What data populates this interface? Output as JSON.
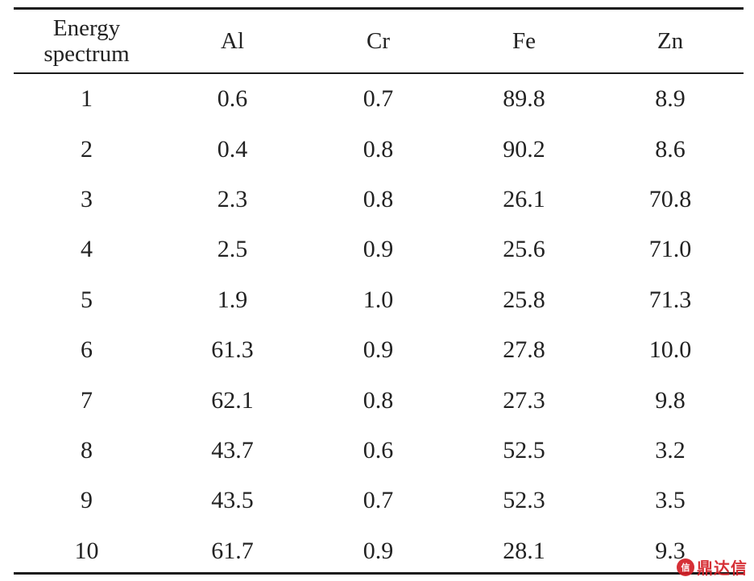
{
  "table": {
    "headers": [
      "Energy\nspectrum",
      "Al",
      "Cr",
      "Fe",
      "Zn"
    ],
    "rows": [
      [
        "1",
        "0.6",
        "0.7",
        "89.8",
        "8.9"
      ],
      [
        "2",
        "0.4",
        "0.8",
        "90.2",
        "8.6"
      ],
      [
        "3",
        "2.3",
        "0.8",
        "26.1",
        "70.8"
      ],
      [
        "4",
        "2.5",
        "0.9",
        "25.6",
        "71.0"
      ],
      [
        "5",
        "1.9",
        "1.0",
        "25.8",
        "71.3"
      ],
      [
        "6",
        "61.3",
        "0.9",
        "27.8",
        "10.0"
      ],
      [
        "7",
        "62.1",
        "0.8",
        "27.3",
        "9.8"
      ],
      [
        "8",
        "43.7",
        "0.6",
        "52.5",
        "3.2"
      ],
      [
        "9",
        "43.5",
        "0.7",
        "52.3",
        "3.5"
      ],
      [
        "10",
        "61.7",
        "0.9",
        "28.1",
        "9.3"
      ]
    ]
  },
  "watermark": {
    "text": "鼎达信",
    "color": "#d31f26"
  }
}
